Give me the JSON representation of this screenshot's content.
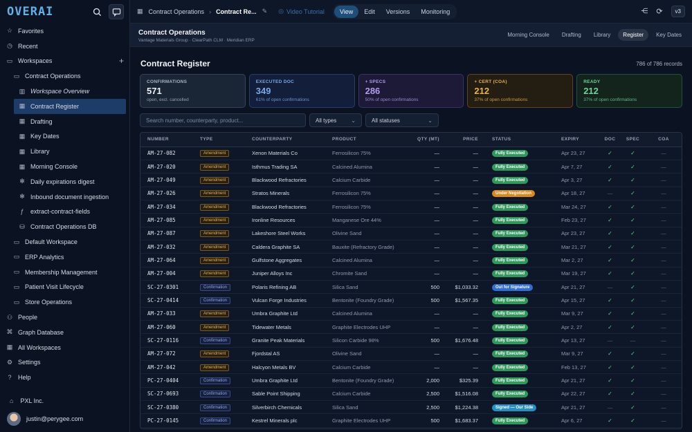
{
  "sidebar": {
    "logo": "OVERAI",
    "items": [
      {
        "label": "Favorites",
        "icon": "star-icon",
        "glyph": "☆"
      },
      {
        "label": "Recent",
        "icon": "clock-icon",
        "glyph": "◷"
      },
      {
        "label": "Workspaces",
        "icon": "folder-icon",
        "glyph": "▭"
      },
      {
        "label": "Contract Operations",
        "icon": "folder-icon",
        "glyph": "▭"
      },
      {
        "label": "Workspace Overview",
        "icon": "book-icon",
        "glyph": "▥"
      },
      {
        "label": "Contract Register",
        "icon": "table-icon",
        "glyph": "▦"
      },
      {
        "label": "Drafting",
        "icon": "table-icon",
        "glyph": "▦"
      },
      {
        "label": "Key Dates",
        "icon": "table-icon",
        "glyph": "▦"
      },
      {
        "label": "Library",
        "icon": "table-icon",
        "glyph": "▦"
      },
      {
        "label": "Morning Console",
        "icon": "table-icon",
        "glyph": "▦"
      },
      {
        "label": "Daily expirations digest",
        "icon": "workflow-icon",
        "glyph": "✻"
      },
      {
        "label": "Inbound document ingestion",
        "icon": "workflow-icon",
        "glyph": "✻"
      },
      {
        "label": "extract-contract-fields",
        "icon": "function-icon",
        "glyph": "ƒ"
      },
      {
        "label": "Contract Operations DB",
        "icon": "database-icon",
        "glyph": "⛁"
      },
      {
        "label": "Default Workspace",
        "icon": "folder-icon",
        "glyph": "▭"
      },
      {
        "label": "ERP Analytics",
        "icon": "folder-icon",
        "glyph": "▭"
      },
      {
        "label": "Membership Management",
        "icon": "folder-icon",
        "glyph": "▭"
      },
      {
        "label": "Patient Visit Lifecycle",
        "icon": "folder-icon",
        "glyph": "▭"
      },
      {
        "label": "Store Operations",
        "icon": "folder-icon",
        "glyph": "▭"
      },
      {
        "label": "People",
        "icon": "people-icon",
        "glyph": "⚇"
      },
      {
        "label": "Graph Database",
        "icon": "graph-icon",
        "glyph": "⌘"
      },
      {
        "label": "All Workspaces",
        "icon": "grid-icon",
        "glyph": "▦"
      },
      {
        "label": "Settings",
        "icon": "gear-icon",
        "glyph": "⚙"
      },
      {
        "label": "Help",
        "icon": "help-icon",
        "glyph": "?"
      }
    ],
    "org": "PXL Inc.",
    "user": "justin@perygee.com"
  },
  "topbar": {
    "crumb1": "Contract Operations",
    "crumb2": "Contract Re...",
    "tutorial": "Video Tutorial",
    "modes": [
      "View",
      "Edit",
      "Versions",
      "Monitoring"
    ],
    "active_mode": "View",
    "version": "v3"
  },
  "header": {
    "title": "Contract Operations",
    "subtitle": "Vantage Materials Group · ClearPath CLM · Meridian ERP",
    "tabs": [
      "Morning Console",
      "Drafting",
      "Library",
      "Register",
      "Key Dates"
    ],
    "active_tab": "Register"
  },
  "main": {
    "title": "Contract Register",
    "record_count": "786 of 786 records",
    "cards": [
      {
        "label": "CONFIRMATIONS",
        "value": "571",
        "sub": "open, excl. cancelled",
        "color": "#aab4c4",
        "bg": "#1a2535",
        "border": "#35425a"
      },
      {
        "label": "EXECUTED DOC",
        "value": "349",
        "sub": "61% of open confirmations",
        "color": "#7aa8e8",
        "bg": "#131f3a",
        "border": "#283d66"
      },
      {
        "label": "+ SPECS",
        "value": "286",
        "sub": "50% of open confirmations",
        "color": "#b39ce8",
        "bg": "#1c1a36",
        "border": "#3a3266"
      },
      {
        "label": "+ CERT (COA)",
        "value": "212",
        "sub": "37% of open confirmations",
        "color": "#e6b24e",
        "bg": "#241d12",
        "border": "#5e4620"
      },
      {
        "label": "READY",
        "value": "212",
        "sub": "37% of open confirmations",
        "color": "#6fd49a",
        "bg": "#13241d",
        "border": "#245239"
      }
    ],
    "search_placeholder": "Search number, counterparty, product...",
    "type_filter": "All types",
    "status_filter": "All statuses"
  },
  "table": {
    "headers": [
      "NUMBER",
      "TYPE",
      "COUNTERPARTY",
      "PRODUCT",
      "QTY (MT)",
      "PRICE",
      "STATUS",
      "EXPIRY",
      "DOC",
      "SPEC",
      "COA"
    ],
    "rows": [
      [
        "AM-27-082",
        "Amendment",
        "Xenon Materials Co",
        "Ferrosilicon 75%",
        "—",
        "—",
        "Fully Executed",
        "Apr 23, 27",
        "✓",
        "✓",
        "—"
      ],
      [
        "AM-27-020",
        "Amendment",
        "Isthmus Trading SA",
        "Calcined Alumina",
        "—",
        "—",
        "Fully Executed",
        "Apr 7, 27",
        "✓",
        "✓",
        "—"
      ],
      [
        "AM-27-049",
        "Amendment",
        "Blackwood Refractories",
        "Calcium Carbide",
        "—",
        "—",
        "Fully Executed",
        "Apr 3, 27",
        "✓",
        "✓",
        "—"
      ],
      [
        "AM-27-026",
        "Amendment",
        "Stratos Minerals",
        "Ferrosilicon 75%",
        "—",
        "—",
        "Under Negotiation",
        "Apr 18, 27",
        "—",
        "✓",
        "—"
      ],
      [
        "AM-27-034",
        "Amendment",
        "Blackwood Refractories",
        "Ferrosilicon 75%",
        "—",
        "—",
        "Fully Executed",
        "Mar 24, 27",
        "✓",
        "✓",
        "—"
      ],
      [
        "AM-27-085",
        "Amendment",
        "Ironline Resources",
        "Manganese Ore 44%",
        "—",
        "—",
        "Fully Executed",
        "Feb 23, 27",
        "✓",
        "✓",
        "—"
      ],
      [
        "AM-27-087",
        "Amendment",
        "Lakeshore Steel Works",
        "Olivine Sand",
        "—",
        "—",
        "Fully Executed",
        "Apr 23, 27",
        "✓",
        "✓",
        "—"
      ],
      [
        "AM-27-032",
        "Amendment",
        "Caldera Graphite SA",
        "Bauxite (Refractory Grade)",
        "—",
        "—",
        "Fully Executed",
        "Mar 21, 27",
        "✓",
        "✓",
        "—"
      ],
      [
        "AM-27-064",
        "Amendment",
        "Gulfstone Aggregates",
        "Calcined Alumina",
        "—",
        "—",
        "Fully Executed",
        "Mar 2, 27",
        "✓",
        "✓",
        "—"
      ],
      [
        "AM-27-004",
        "Amendment",
        "Juniper Alloys Inc",
        "Chromite Sand",
        "—",
        "—",
        "Fully Executed",
        "Mar 19, 27",
        "✓",
        "✓",
        "—"
      ],
      [
        "SC-27-0301",
        "Confirmation",
        "Polaris Refining AB",
        "Silica Sand",
        "500",
        "$1,033.32",
        "Out for Signature",
        "Apr 21, 27",
        "—",
        "✓",
        "—"
      ],
      [
        "SC-27-0414",
        "Confirmation",
        "Vulcan Forge Industries",
        "Bentonite (Foundry Grade)",
        "500",
        "$1,567.35",
        "Fully Executed",
        "Apr 15, 27",
        "✓",
        "✓",
        "—"
      ],
      [
        "AM-27-033",
        "Amendment",
        "Umbra Graphite Ltd",
        "Calcined Alumina",
        "—",
        "—",
        "Fully Executed",
        "Mar 9, 27",
        "✓",
        "✓",
        "—"
      ],
      [
        "AM-27-060",
        "Amendment",
        "Tidewater Metals",
        "Graphite Electrodes UHP",
        "—",
        "—",
        "Fully Executed",
        "Apr 2, 27",
        "✓",
        "✓",
        "—"
      ],
      [
        "SC-27-0116",
        "Confirmation",
        "Granite Peak Materials",
        "Silicon Carbide 98%",
        "500",
        "$1,676.48",
        "Fully Executed",
        "Apr 13, 27",
        "—",
        "—",
        "—"
      ],
      [
        "AM-27-072",
        "Amendment",
        "Fjordstal AS",
        "Olivine Sand",
        "—",
        "—",
        "Fully Executed",
        "Mar 9, 27",
        "✓",
        "✓",
        "—"
      ],
      [
        "AM-27-042",
        "Amendment",
        "Halcyon Metals BV",
        "Calcium Carbide",
        "—",
        "—",
        "Fully Executed",
        "Feb 13, 27",
        "✓",
        "✓",
        "—"
      ],
      [
        "PC-27-0404",
        "Confirmation",
        "Umbra Graphite Ltd",
        "Bentonite (Foundry Grade)",
        "2,000",
        "$325.39",
        "Fully Executed",
        "Apr 21, 27",
        "✓",
        "✓",
        "—"
      ],
      [
        "SC-27-0693",
        "Confirmation",
        "Sable Point Shipping",
        "Calcium Carbide",
        "2,500",
        "$1,516.08",
        "Fully Executed",
        "Apr 22, 27",
        "✓",
        "✓",
        "—"
      ],
      [
        "SC-27-0380",
        "Confirmation",
        "Silverbirch Chemicals",
        "Silica Sand",
        "2,500",
        "$1,224.38",
        "Signed — Our Side",
        "Apr 21, 27",
        "—",
        "✓",
        "—"
      ],
      [
        "PC-27-0145",
        "Confirmation",
        "Kestrel Minerals plc",
        "Graphite Electrodes UHP",
        "500",
        "$1,683.37",
        "Fully Executed",
        "Apr 6, 27",
        "✓",
        "✓",
        "—"
      ]
    ],
    "status_colors": {
      "Fully Executed": "#2f9a5c",
      "Under Negotiation": "#d98a1e",
      "Out for Signature": "#2f6ed8",
      "Signed — Our Side": "#2590c4"
    }
  }
}
